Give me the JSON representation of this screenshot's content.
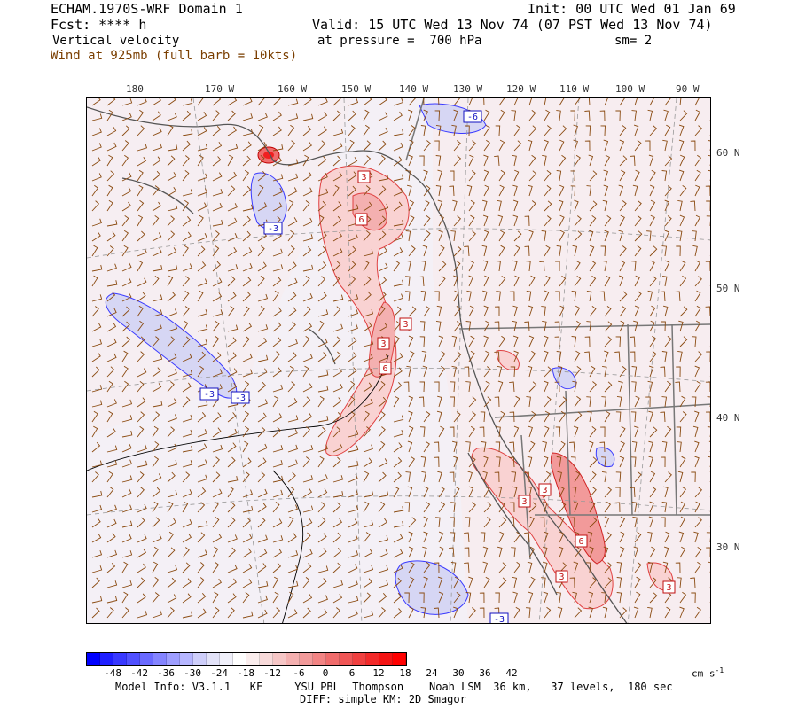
{
  "header": {
    "title": "ECHAM.1970S-WRF Domain 1",
    "init": "Init: 00 UTC Wed 01 Jan 69",
    "fcst": "Fcst: **** h",
    "valid": "Valid: 15 UTC Wed 13 Nov 74 (07 PST Wed 13 Nov 74)",
    "field": "Vertical velocity",
    "pressure": "at pressure =  700 hPa",
    "smoothing": "sm= 2",
    "wind": "Wind at 925mb (full barb = 10kts)"
  },
  "axes": {
    "lon_labels": [
      "180",
      "170 W",
      "160 W",
      "150 W",
      "140 W",
      "130 W",
      "120 W",
      "110 W",
      "100 W",
      "90 W"
    ],
    "lat_labels": [
      "60 N",
      "50 N",
      "40 N",
      "30 N"
    ]
  },
  "contour_labels": [
    "-6",
    "3",
    "6",
    "-3",
    "3",
    "3",
    "6",
    "-3",
    "-3",
    "3",
    "3",
    "6",
    "3",
    "3",
    "-3"
  ],
  "colorbar": {
    "colors": [
      "#0000ff",
      "#1f1fff",
      "#3838ff",
      "#5050ff",
      "#6a6aff",
      "#8484ff",
      "#9e9eff",
      "#b6b6ff",
      "#cecefa",
      "#e2e2f8",
      "#f0f0fa",
      "#ffffff",
      "#fbeeee",
      "#f8dada",
      "#f6c6c6",
      "#f4b0b0",
      "#f29a9a",
      "#f28484",
      "#f06c6c",
      "#f05656",
      "#f04040",
      "#f22a2a",
      "#f41414",
      "#ff0000"
    ],
    "labels": [
      "-48",
      "-42",
      "-36",
      "-30",
      "-24",
      "-18",
      "-12",
      "-6",
      "0",
      "6",
      "12",
      "18",
      "24",
      "30",
      "36",
      "42"
    ],
    "units": "cm s"
  },
  "footer": {
    "model_info": "Model Info: V3.1.1   KF     YSU PBL  Thompson    Noah LSM  36 km,   37 levels,  180 sec",
    "diff": "DIFF: simple KM: 2D Smagor"
  }
}
